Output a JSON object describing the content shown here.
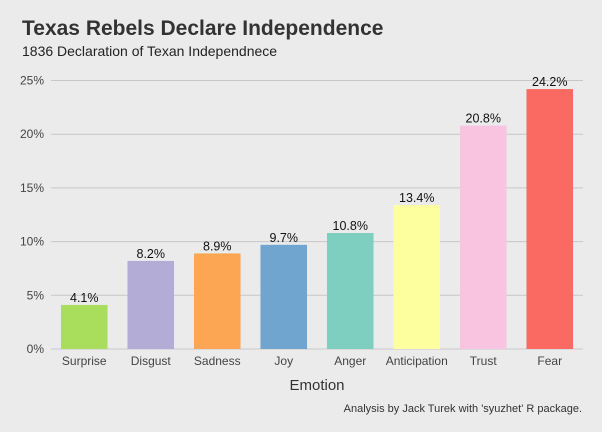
{
  "chart_data": {
    "type": "bar",
    "title": "Texas Rebels Declare Independence",
    "subtitle": "1836 Declaration of Texan Independnece",
    "xlabel": "Emotion",
    "ylabel": "",
    "caption": "Analysis by Jack Turek with 'syuzhet' R package.",
    "categories": [
      "Surprise",
      "Disgust",
      "Sadness",
      "Joy",
      "Anger",
      "Anticipation",
      "Trust",
      "Fear"
    ],
    "values": [
      4.1,
      8.2,
      8.9,
      9.7,
      10.8,
      13.4,
      20.8,
      24.2
    ],
    "value_labels": [
      "4.1%",
      "8.2%",
      "8.9%",
      "9.7%",
      "10.8%",
      "13.4%",
      "20.8%",
      "24.2%"
    ],
    "colors": [
      "#a8de5b",
      "#b3acd6",
      "#fca552",
      "#70a5cf",
      "#7fcfc0",
      "#fdff9e",
      "#f9c4e0",
      "#fa6a62"
    ],
    "ylim": [
      0,
      25
    ],
    "yticks": [
      0,
      5,
      10,
      15,
      20,
      25
    ],
    "ytick_labels": [
      "0%",
      "5%",
      "10%",
      "15%",
      "20%",
      "25%"
    ],
    "grid": true,
    "legend": "none"
  }
}
